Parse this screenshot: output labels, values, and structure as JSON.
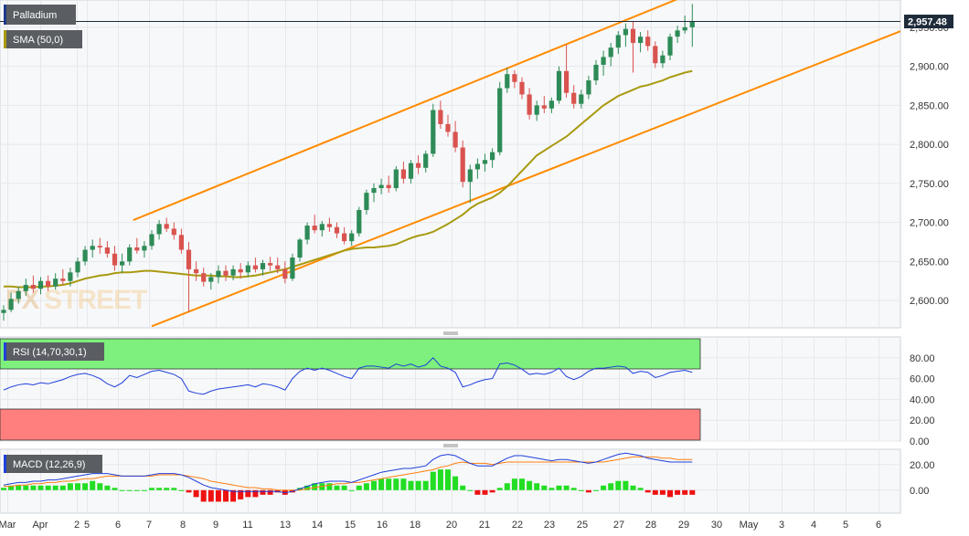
{
  "chart_data": {
    "type": "candlestick",
    "title": "Palladium",
    "indicators": {
      "sma_label": "SMA (50,0)",
      "rsi_label": "RSI (14,70,30,1)",
      "macd_label": "MACD (12,26,9)"
    },
    "last_price": "2,957.48",
    "x_labels": [
      "Mar",
      "Apr",
      "2",
      "5",
      "6",
      "7",
      "8",
      "9",
      "11",
      "13",
      "14",
      "15",
      "16",
      "18",
      "20",
      "21",
      "22",
      "23",
      "25",
      "27",
      "28",
      "29",
      "30",
      "May",
      "3",
      "4",
      "5",
      "6"
    ],
    "price_axis": {
      "ylim": [
        2565,
        2985
      ],
      "ticks": [
        "2,950.00",
        "2,900.00",
        "2,850.00",
        "2,800.00",
        "2,750.00",
        "2,700.00",
        "2,650.00",
        "2,600.00"
      ]
    },
    "rsi_axis": {
      "ylim": [
        0,
        100
      ],
      "ticks": [
        "80.00",
        "60.00",
        "40.00",
        "20.00",
        "0.00"
      ],
      "overbought": 70,
      "oversold": 30
    },
    "macd_axis": {
      "ylim": [
        -18,
        32
      ],
      "ticks": [
        "20.00",
        "0.00"
      ]
    },
    "candles": [
      [
        2584,
        2594,
        2574,
        2588
      ],
      [
        2588,
        2610,
        2585,
        2602
      ],
      [
        2602,
        2618,
        2596,
        2612
      ],
      [
        2612,
        2628,
        2606,
        2620
      ],
      [
        2620,
        2632,
        2610,
        2615
      ],
      [
        2615,
        2630,
        2608,
        2625
      ],
      [
        2625,
        2632,
        2612,
        2618
      ],
      [
        2618,
        2635,
        2614,
        2628
      ],
      [
        2628,
        2640,
        2620,
        2625
      ],
      [
        2625,
        2642,
        2618,
        2636
      ],
      [
        2636,
        2655,
        2630,
        2650
      ],
      [
        2650,
        2670,
        2645,
        2665
      ],
      [
        2665,
        2678,
        2655,
        2670
      ],
      [
        2670,
        2680,
        2660,
        2668
      ],
      [
        2668,
        2676,
        2655,
        2660
      ],
      [
        2660,
        2670,
        2638,
        2645
      ],
      [
        2645,
        2660,
        2635,
        2650
      ],
      [
        2650,
        2672,
        2645,
        2668
      ],
      [
        2668,
        2680,
        2660,
        2664
      ],
      [
        2664,
        2676,
        2655,
        2670
      ],
      [
        2670,
        2690,
        2665,
        2685
      ],
      [
        2685,
        2703,
        2678,
        2698
      ],
      [
        2698,
        2706,
        2688,
        2692
      ],
      [
        2692,
        2700,
        2678,
        2684
      ],
      [
        2684,
        2692,
        2660,
        2665
      ],
      [
        2665,
        2675,
        2585,
        2640
      ],
      [
        2640,
        2650,
        2625,
        2635
      ],
      [
        2635,
        2642,
        2618,
        2624
      ],
      [
        2624,
        2635,
        2614,
        2630
      ],
      [
        2630,
        2645,
        2622,
        2638
      ],
      [
        2638,
        2645,
        2625,
        2632
      ],
      [
        2632,
        2645,
        2626,
        2640
      ],
      [
        2640,
        2648,
        2628,
        2636
      ],
      [
        2636,
        2650,
        2630,
        2645
      ],
      [
        2645,
        2655,
        2636,
        2640
      ],
      [
        2640,
        2652,
        2632,
        2648
      ],
      [
        2648,
        2656,
        2638,
        2645
      ],
      [
        2645,
        2655,
        2635,
        2640
      ],
      [
        2640,
        2650,
        2622,
        2628
      ],
      [
        2628,
        2660,
        2625,
        2655
      ],
      [
        2655,
        2680,
        2650,
        2678
      ],
      [
        2678,
        2700,
        2672,
        2696
      ],
      [
        2696,
        2710,
        2686,
        2690
      ],
      [
        2690,
        2702,
        2682,
        2698
      ],
      [
        2698,
        2706,
        2688,
        2694
      ],
      [
        2694,
        2700,
        2680,
        2686
      ],
      [
        2686,
        2694,
        2672,
        2676
      ],
      [
        2676,
        2690,
        2670,
        2686
      ],
      [
        2686,
        2720,
        2682,
        2716
      ],
      [
        2716,
        2742,
        2710,
        2738
      ],
      [
        2738,
        2750,
        2726,
        2744
      ],
      [
        2744,
        2756,
        2736,
        2748
      ],
      [
        2748,
        2760,
        2738,
        2744
      ],
      [
        2744,
        2772,
        2740,
        2768
      ],
      [
        2768,
        2778,
        2750,
        2756
      ],
      [
        2756,
        2780,
        2750,
        2776
      ],
      [
        2776,
        2786,
        2762,
        2770
      ],
      [
        2770,
        2792,
        2764,
        2788
      ],
      [
        2788,
        2852,
        2784,
        2844
      ],
      [
        2844,
        2856,
        2820,
        2826
      ],
      [
        2826,
        2838,
        2810,
        2816
      ],
      [
        2816,
        2830,
        2790,
        2796
      ],
      [
        2796,
        2805,
        2745,
        2752
      ],
      [
        2752,
        2774,
        2725,
        2768
      ],
      [
        2768,
        2782,
        2756,
        2775
      ],
      [
        2775,
        2788,
        2765,
        2780
      ],
      [
        2780,
        2795,
        2770,
        2790
      ],
      [
        2790,
        2880,
        2786,
        2872
      ],
      [
        2872,
        2898,
        2866,
        2890
      ],
      [
        2890,
        2895,
        2872,
        2880
      ],
      [
        2880,
        2886,
        2858,
        2864
      ],
      [
        2864,
        2872,
        2832,
        2838
      ],
      [
        2838,
        2856,
        2830,
        2850
      ],
      [
        2850,
        2862,
        2840,
        2846
      ],
      [
        2846,
        2860,
        2840,
        2856
      ],
      [
        2856,
        2900,
        2852,
        2894
      ],
      [
        2894,
        2928,
        2860,
        2866
      ],
      [
        2866,
        2876,
        2846,
        2852
      ],
      [
        2852,
        2870,
        2846,
        2864
      ],
      [
        2864,
        2888,
        2858,
        2882
      ],
      [
        2882,
        2908,
        2876,
        2902
      ],
      [
        2902,
        2920,
        2888,
        2912
      ],
      [
        2912,
        2930,
        2900,
        2924
      ],
      [
        2924,
        2945,
        2916,
        2940
      ],
      [
        2940,
        2955,
        2925,
        2948
      ],
      [
        2948,
        2958,
        2892,
        2930
      ],
      [
        2930,
        2944,
        2918,
        2938
      ],
      [
        2938,
        2946,
        2920,
        2926
      ],
      [
        2926,
        2932,
        2898,
        2904
      ],
      [
        2904,
        2920,
        2898,
        2914
      ],
      [
        2914,
        2942,
        2908,
        2938
      ],
      [
        2938,
        2952,
        2930,
        2946
      ],
      [
        2946,
        2965,
        2942,
        2950
      ],
      [
        2950,
        2980,
        2925,
        2957
      ]
    ],
    "sma_values": [
      2618,
      2618,
      2617,
      2617,
      2617,
      2618,
      2618,
      2619,
      2620,
      2622,
      2625,
      2628,
      2630,
      2632,
      2633,
      2635,
      2636,
      2636,
      2637,
      2638,
      2638,
      2637,
      2636,
      2635,
      2634,
      2633,
      2632,
      2632,
      2632,
      2631,
      2631,
      2630,
      2630,
      2631,
      2632,
      2634,
      2636,
      2638,
      2640,
      2643,
      2646,
      2649,
      2652,
      2655,
      2658,
      2661,
      2664,
      2666,
      2667,
      2668,
      2668,
      2669,
      2670,
      2672,
      2676,
      2680,
      2683,
      2685,
      2688,
      2693,
      2698,
      2704,
      2710,
      2718,
      2724,
      2728,
      2732,
      2738,
      2746,
      2756,
      2766,
      2776,
      2786,
      2792,
      2798,
      2804,
      2810,
      2818,
      2826,
      2834,
      2842,
      2850,
      2856,
      2862,
      2866,
      2870,
      2874,
      2876,
      2879,
      2882,
      2886,
      2889,
      2892,
      2894
    ],
    "rsi_values": [
      49,
      52,
      54,
      55,
      54,
      56,
      55,
      57,
      59,
      62,
      64,
      65,
      63,
      60,
      55,
      52,
      56,
      63,
      61,
      64,
      67,
      68,
      66,
      64,
      60,
      48,
      46,
      45,
      48,
      50,
      51,
      52,
      53,
      54,
      52,
      55,
      54,
      52,
      49,
      60,
      67,
      70,
      68,
      70,
      68,
      65,
      62,
      60,
      70,
      72,
      72,
      71,
      70,
      74,
      72,
      74,
      71,
      73,
      80,
      72,
      70,
      66,
      52,
      54,
      57,
      59,
      60,
      74,
      75,
      73,
      69,
      64,
      65,
      64,
      66,
      70,
      62,
      59,
      62,
      67,
      70,
      70,
      71,
      72,
      71,
      65,
      67,
      66,
      61,
      63,
      66,
      67,
      68,
      66
    ],
    "macd_line": [
      4,
      5,
      6,
      6,
      7,
      7,
      8,
      8,
      9,
      10,
      11,
      12,
      13,
      13,
      13,
      12,
      11,
      11,
      11,
      11,
      12,
      13,
      13,
      13,
      12,
      10,
      7,
      4,
      2,
      1,
      0,
      -1,
      -1,
      -1,
      -1,
      -1,
      -1,
      -1,
      -2,
      -1,
      1,
      3,
      5,
      6,
      7,
      7,
      7,
      6,
      8,
      10,
      12,
      14,
      15,
      16,
      17,
      17,
      18,
      19,
      24,
      27,
      28,
      27,
      24,
      21,
      19,
      19,
      19,
      22,
      25,
      27,
      27,
      26,
      25,
      24,
      23,
      24,
      24,
      23,
      22,
      21,
      22,
      24,
      26,
      28,
      29,
      28,
      27,
      25,
      24,
      23,
      22,
      22,
      22,
      22
    ],
    "macd_signal": [
      3,
      3,
      4,
      4,
      5,
      5,
      6,
      6,
      7,
      7,
      8,
      9,
      9,
      10,
      11,
      11,
      11,
      11,
      11,
      11,
      11,
      12,
      12,
      12,
      12,
      11,
      10,
      9,
      7,
      6,
      5,
      4,
      3,
      2,
      2,
      1,
      1,
      0,
      0,
      0,
      0,
      1,
      2,
      3,
      4,
      5,
      5,
      6,
      6,
      7,
      8,
      9,
      10,
      11,
      12,
      13,
      14,
      15,
      16,
      18,
      19,
      21,
      22,
      21,
      21,
      21,
      20,
      21,
      22,
      22,
      22,
      22,
      22,
      22,
      22,
      22,
      22,
      22,
      22,
      22,
      22,
      22,
      23,
      24,
      25,
      26,
      26,
      26,
      26,
      25,
      25,
      24,
      24,
      24
    ],
    "colors": {
      "up": "#2e8b57",
      "down": "#d9534f",
      "sma": "#a89a10",
      "channel": "#ff8c00",
      "rsi": "#1f3fd9",
      "macd": "#1f3fd9",
      "signal": "#ff7f0e",
      "hist_up": "#22dd22",
      "hist_down": "#ee1111"
    }
  }
}
